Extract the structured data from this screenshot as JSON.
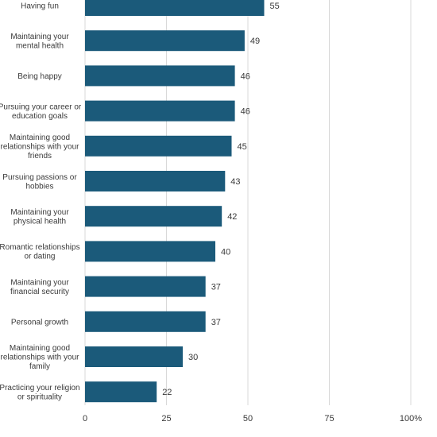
{
  "chart_data": {
    "type": "bar",
    "orientation": "horizontal",
    "categories": [
      [
        "Having fun"
      ],
      [
        "Maintaining your",
        "mental health"
      ],
      [
        "Being happy"
      ],
      [
        "Pursuing your career or",
        "education goals"
      ],
      [
        "Maintaining good",
        "relationships with your",
        "friends"
      ],
      [
        "Pursuing passions or",
        "hobbies"
      ],
      [
        "Maintaining your",
        "physical health"
      ],
      [
        "Romantic relationships",
        "or dating"
      ],
      [
        "Maintaining your",
        "financial security"
      ],
      [
        "Personal growth"
      ],
      [
        "Maintaining good",
        "relationships with your",
        "family"
      ],
      [
        "Practicing your religion",
        "or spirituality"
      ]
    ],
    "values": [
      55,
      49,
      46,
      46,
      45,
      43,
      42,
      40,
      37,
      37,
      30,
      22
    ],
    "xlim": [
      0,
      100
    ],
    "x_ticks": [
      {
        "value": 0,
        "label": "0"
      },
      {
        "value": 25,
        "label": "25"
      },
      {
        "value": 50,
        "label": "50"
      },
      {
        "value": 75,
        "label": "75"
      },
      {
        "value": 100,
        "label": "100%"
      }
    ],
    "grid": true,
    "bar_color": "#1b5a7a",
    "title": "",
    "xlabel": "",
    "ylabel": ""
  }
}
